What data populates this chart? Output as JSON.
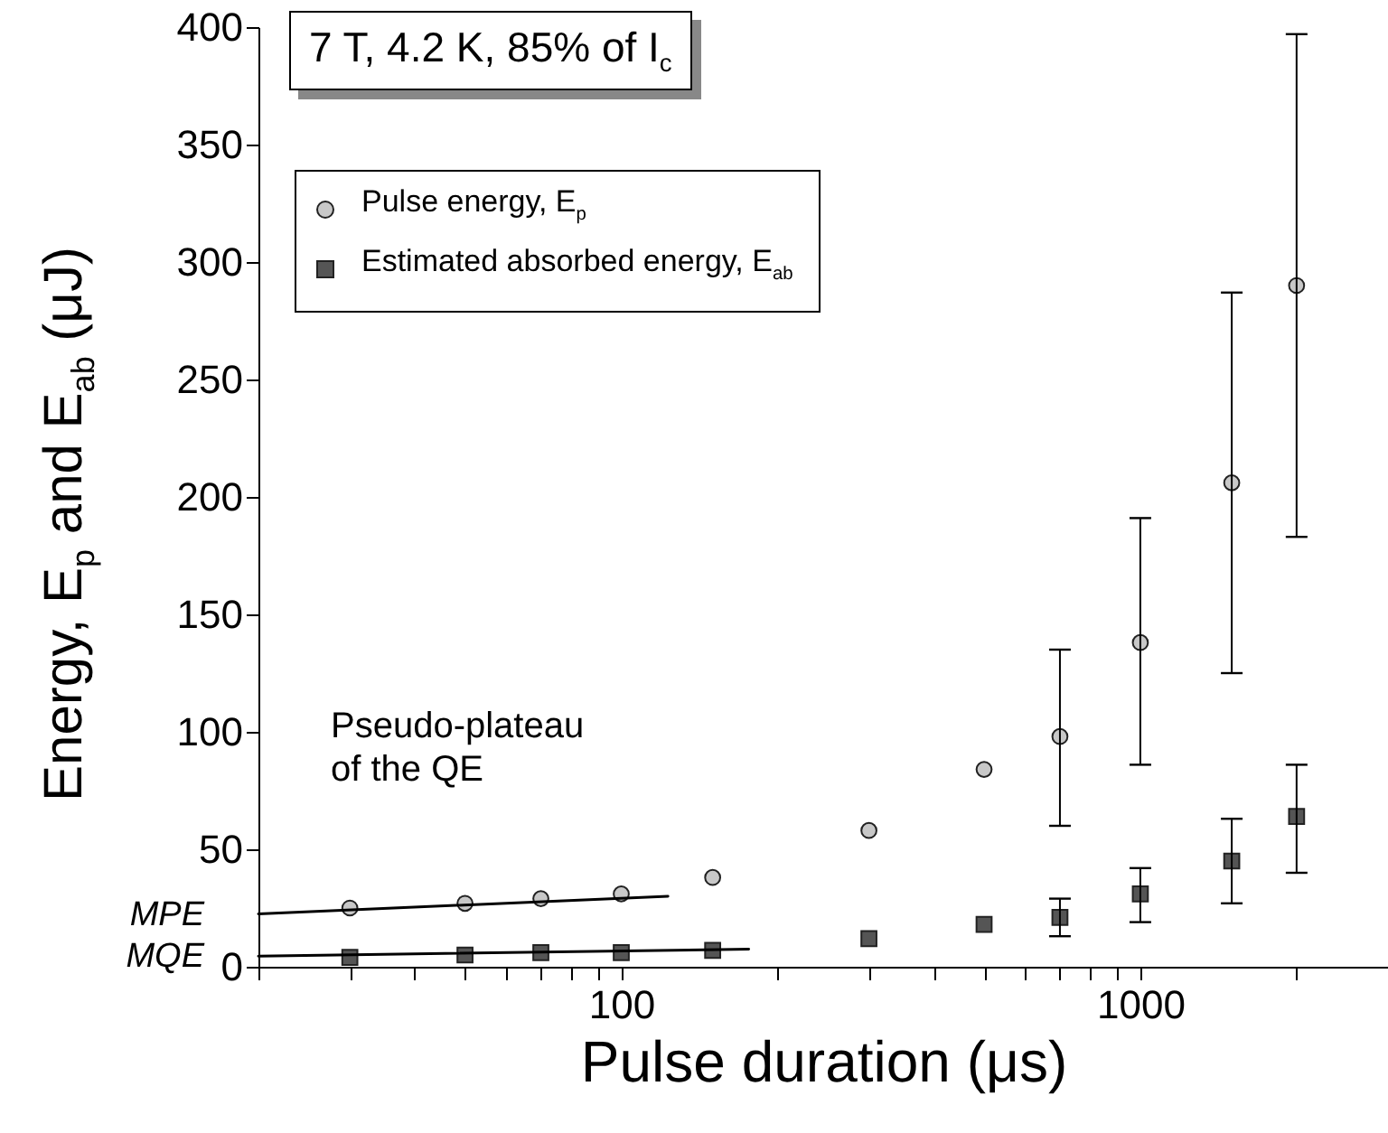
{
  "chart_data": {
    "type": "scatter",
    "title": "7 T, 4.2 K, 85% of I$_{c}$",
    "xlabel": "Pulse duration (μs)",
    "ylabel": "Energy, E$_{p}$ and E$_{ab}$ (μJ)",
    "log": "x",
    "grid": false,
    "legend": "top left",
    "xlim": [
      20,
      3000
    ],
    "ylim": [
      0,
      400
    ],
    "xticks": [
      {
        "value": 20,
        "label": null
      },
      {
        "value": 30,
        "label": null
      },
      {
        "value": 40,
        "label": null
      },
      {
        "value": 50,
        "label": null
      },
      {
        "value": 60,
        "label": null
      },
      {
        "value": 70,
        "label": null
      },
      {
        "value": 80,
        "label": null
      },
      {
        "value": 90,
        "label": null
      },
      100,
      {
        "value": 200,
        "label": null
      },
      {
        "value": 300,
        "label": null
      },
      {
        "value": 400,
        "label": null
      },
      {
        "value": 500,
        "label": null
      },
      {
        "value": 600,
        "label": null
      },
      {
        "value": 700,
        "label": null
      },
      {
        "value": 800,
        "label": null
      },
      {
        "value": 900,
        "label": null
      },
      1000,
      {
        "value": 2000,
        "label": null
      },
      {
        "value": 3000,
        "label": null
      }
    ],
    "yticks": [
      0,
      50,
      100,
      150,
      200,
      250,
      300,
      350,
      400
    ],
    "series": [
      {
        "name": "Pulse energy, E$_{p}$",
        "marker": "circle",
        "color": "#c8c8c8",
        "x": [
          30,
          50,
          70,
          100,
          150,
          300,
          500,
          700,
          1000,
          1500,
          2000
        ],
        "values": [
          25,
          27,
          29,
          31,
          38,
          58,
          84,
          98,
          138,
          206,
          290
        ],
        "errors": [
          null,
          null,
          null,
          null,
          null,
          null,
          null,
          [
            60,
            135
          ],
          [
            86,
            191
          ],
          [
            125,
            287
          ],
          [
            183,
            397
          ]
        ]
      },
      {
        "name": "Estimated absorbed energy, E$_{ab}$",
        "marker": "square",
        "color": "#555555",
        "x": [
          30,
          50,
          70,
          100,
          150,
          300,
          500,
          700,
          1000,
          1500,
          2000
        ],
        "values": [
          4,
          5,
          6,
          6,
          7,
          12,
          18,
          21,
          31,
          45,
          64
        ],
        "errors": [
          null,
          null,
          null,
          null,
          null,
          null,
          null,
          [
            13,
            29
          ],
          [
            19,
            42
          ],
          [
            27,
            63
          ],
          [
            40,
            86
          ]
        ]
      },
      {
        "type": "line",
        "color": "#000000",
        "x": [
          20,
          123
        ],
        "values": [
          22.5,
          30
        ]
      },
      {
        "type": "line",
        "color": "#000000",
        "x": [
          20,
          176
        ],
        "values": [
          4.5,
          7.5
        ]
      }
    ],
    "annotations": [
      "Pseudo-plateau of the QE",
      {
        "text": "MPE",
        "x": 20,
        "y": 22.5
      },
      {
        "text": "MQE",
        "x": 20,
        "y": 4.5
      }
    ]
  }
}
